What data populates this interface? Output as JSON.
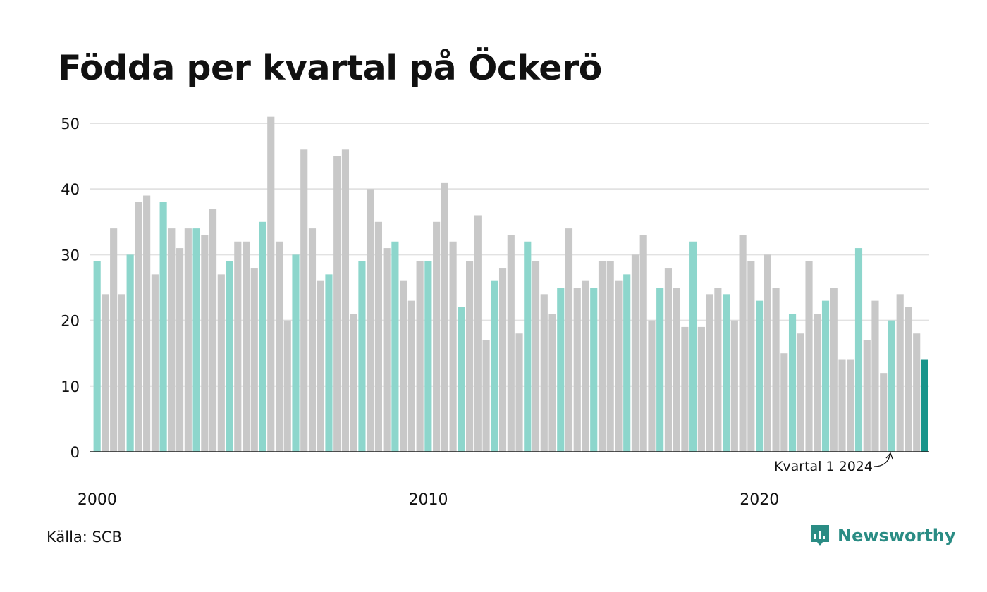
{
  "title": "Födda per kvartal på Öckerö",
  "source": "Källa: SCB",
  "brand": "Newsworthy",
  "colors": {
    "highlight": "#8dd6cc",
    "bar": "#c8c8c8",
    "latest": "#19948b",
    "grid": "#e2e2e2",
    "axis": "#222222"
  },
  "chart_data": {
    "type": "bar",
    "title": "Födda per kvartal på Öckerö",
    "xlabel": "",
    "ylabel": "",
    "ylim": [
      0,
      50
    ],
    "yticks": [
      0,
      10,
      20,
      30,
      40,
      50
    ],
    "xticks": [
      "2000",
      "2010",
      "2020"
    ],
    "grid": true,
    "annotation": "Kvartal 1 2024",
    "categories": [
      "2000 Q1",
      "2000 Q2",
      "2000 Q3",
      "2000 Q4",
      "2001 Q1",
      "2001 Q2",
      "2001 Q3",
      "2001 Q4",
      "2002 Q1",
      "2002 Q2",
      "2002 Q3",
      "2002 Q4",
      "2003 Q1",
      "2003 Q2",
      "2003 Q3",
      "2003 Q4",
      "2004 Q1",
      "2004 Q2",
      "2004 Q3",
      "2004 Q4",
      "2005 Q1",
      "2005 Q2",
      "2005 Q3",
      "2005 Q4",
      "2006 Q1",
      "2006 Q2",
      "2006 Q3",
      "2006 Q4",
      "2007 Q1",
      "2007 Q2",
      "2007 Q3",
      "2007 Q4",
      "2008 Q1",
      "2008 Q2",
      "2008 Q3",
      "2008 Q4",
      "2009 Q1",
      "2009 Q2",
      "2009 Q3",
      "2009 Q4",
      "2010 Q1",
      "2010 Q2",
      "2010 Q3",
      "2010 Q4",
      "2011 Q1",
      "2011 Q2",
      "2011 Q3",
      "2011 Q4",
      "2012 Q1",
      "2012 Q2",
      "2012 Q3",
      "2012 Q4",
      "2013 Q1",
      "2013 Q2",
      "2013 Q3",
      "2013 Q4",
      "2014 Q1",
      "2014 Q2",
      "2014 Q3",
      "2014 Q4",
      "2015 Q1",
      "2015 Q2",
      "2015 Q3",
      "2015 Q4",
      "2016 Q1",
      "2016 Q2",
      "2016 Q3",
      "2016 Q4",
      "2017 Q1",
      "2017 Q2",
      "2017 Q3",
      "2017 Q4",
      "2018 Q1",
      "2018 Q2",
      "2018 Q3",
      "2018 Q4",
      "2019 Q1",
      "2019 Q2",
      "2019 Q3",
      "2019 Q4",
      "2020 Q1",
      "2020 Q2",
      "2020 Q3",
      "2020 Q4",
      "2021 Q1",
      "2021 Q2",
      "2021 Q3",
      "2021 Q4",
      "2022 Q1",
      "2022 Q2",
      "2022 Q3",
      "2022 Q4",
      "2023 Q1",
      "2023 Q2",
      "2023 Q3",
      "2023 Q4",
      "2024 Q1",
      "2024 Q2",
      "2024 Q3",
      "2024 Q4",
      "2025 Q1"
    ],
    "values": [
      29,
      24,
      34,
      24,
      30,
      38,
      39,
      27,
      38,
      34,
      31,
      34,
      34,
      33,
      37,
      27,
      29,
      32,
      32,
      28,
      35,
      51,
      32,
      20,
      30,
      46,
      34,
      26,
      27,
      45,
      46,
      21,
      29,
      40,
      35,
      31,
      32,
      26,
      23,
      29,
      29,
      35,
      41,
      32,
      22,
      29,
      36,
      17,
      26,
      28,
      33,
      18,
      32,
      29,
      24,
      21,
      25,
      34,
      25,
      26,
      25,
      29,
      29,
      26,
      27,
      30,
      33,
      20,
      25,
      28,
      25,
      19,
      32,
      19,
      24,
      25,
      24,
      20,
      33,
      29,
      23,
      30,
      25,
      15,
      21,
      18,
      29,
      21,
      23,
      25,
      14,
      14,
      31,
      17,
      23,
      12,
      20,
      24,
      22,
      18,
      14
    ]
  }
}
